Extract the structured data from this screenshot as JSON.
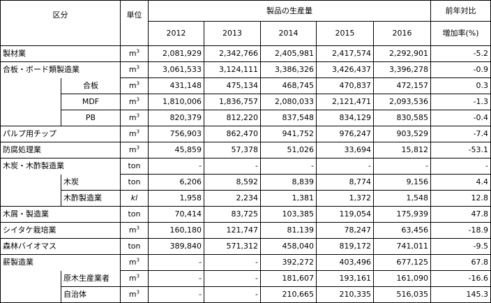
{
  "header": {
    "category": "区分",
    "unit": "単位",
    "production": "製品の生産量",
    "years": [
      "2012",
      "2013",
      "2014",
      "2015",
      "2016"
    ],
    "change_line1": "前年対比",
    "change_line2": "増加率(%)"
  },
  "unit_m3_base": "m",
  "unit_m3_sup": "3",
  "rows": [
    {
      "label": "製材業",
      "unit": "m3",
      "values": [
        "2,081,929",
        "2,342,766",
        "2,405,981",
        "2,417,574",
        "2,292,901"
      ],
      "change": "-5.2"
    },
    {
      "label": "合板・ボード類製造業",
      "unit": "m3",
      "values": [
        "3,061,533",
        "3,124,111",
        "3,386,326",
        "3,426,437",
        "3,396,278"
      ],
      "change": "-0.9"
    },
    {
      "label": "合板",
      "unit": "m3",
      "values": [
        "431,148",
        "475,134",
        "468,745",
        "470,837",
        "472,157"
      ],
      "change": "0.3"
    },
    {
      "label": "MDF",
      "unit": "m3",
      "values": [
        "1,810,006",
        "1,836,757",
        "2,080,033",
        "2,121,471",
        "2,093,536"
      ],
      "change": "-1.3"
    },
    {
      "label": "PB",
      "unit": "m3",
      "values": [
        "820,379",
        "812,220",
        "837,548",
        "834,129",
        "830,585"
      ],
      "change": "-0.4"
    },
    {
      "label": "パルプ用チップ",
      "unit": "m3",
      "values": [
        "756,903",
        "862,470",
        "941,752",
        "976,247",
        "903,529"
      ],
      "change": "-7.4"
    },
    {
      "label": "防腐処理業",
      "unit": "m3",
      "values": [
        "45,859",
        "57,378",
        "51,026",
        "33,694",
        "15,812"
      ],
      "change": "-53.1"
    },
    {
      "label": "木炭・木酢製造業",
      "unit": "ton",
      "values": [
        "-",
        "-",
        "-",
        "-",
        "-"
      ],
      "change": "-"
    },
    {
      "label": "木炭",
      "unit": "ton",
      "values": [
        "6,206",
        "8,592",
        "8,839",
        "8,774",
        "9,156"
      ],
      "change": "4.4"
    },
    {
      "label": "木酢製造業",
      "unit": "kl",
      "values": [
        "1,958",
        "2,234",
        "1,381",
        "1,372",
        "1,548"
      ],
      "change": "12.8"
    },
    {
      "label": "木屑・製造業",
      "unit": "ton",
      "values": [
        "70,414",
        "83,725",
        "103,385",
        "119,054",
        "175,939"
      ],
      "change": "47.8"
    },
    {
      "label": "シイタケ栽培業",
      "unit": "m3",
      "values": [
        "160,180",
        "121,747",
        "81,139",
        "78,247",
        "63,456"
      ],
      "change": "-18.9"
    },
    {
      "label": "森林バイオマス",
      "unit": "ton",
      "values": [
        "389,840",
        "571,312",
        "458,040",
        "819,172",
        "741,011"
      ],
      "change": "-9.5"
    },
    {
      "label": "薪製造業",
      "unit": "m3",
      "values": [
        "-",
        "-",
        "392,272",
        "403,496",
        "677,125"
      ],
      "change": "67.8"
    },
    {
      "label": "原木生産業者",
      "unit": "m3",
      "values": [
        "-",
        "-",
        "181,607",
        "193,161",
        "161,090"
      ],
      "change": "-16.6"
    },
    {
      "label": "自治体",
      "unit": "m3",
      "values": [
        "-",
        "-",
        "210,665",
        "210,335",
        "516,035"
      ],
      "change": "145.3"
    }
  ]
}
